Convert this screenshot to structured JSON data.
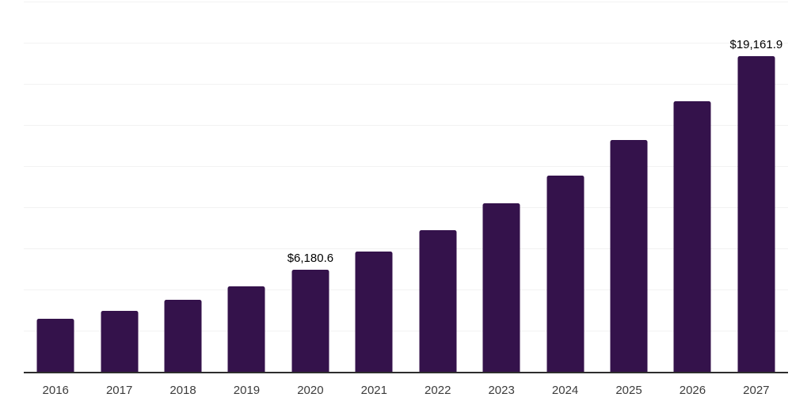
{
  "chart_data": {
    "type": "bar",
    "title": "",
    "xlabel": "",
    "ylabel": "",
    "categories": [
      "2016",
      "2017",
      "2018",
      "2019",
      "2020",
      "2021",
      "2022",
      "2023",
      "2024",
      "2025",
      "2026",
      "2027"
    ],
    "values": [
      3210,
      3720,
      4360,
      5210,
      6180.6,
      7290,
      8610,
      10220,
      11940,
      14090,
      16460,
      19161.9
    ],
    "data_labels": [
      "",
      "",
      "",
      "",
      "$6,180.6",
      "",
      "",
      "",
      "",
      "",
      "",
      "$19,161.9"
    ],
    "labeled_values": {
      "2020": "$6,180.6",
      "2027": "$19,161.9"
    },
    "ylim": [
      0,
      22500
    ],
    "gridline_step": 2500,
    "grid": true,
    "legend": false,
    "y_axis_tick_labels_visible": false,
    "colors": {
      "bar": "#34124B",
      "axis_line": "#2e2e2e",
      "gridline": "#f2f2f2",
      "tick_label": "#3c3c3c",
      "value_label": "#000000",
      "background": "#ffffff"
    }
  }
}
